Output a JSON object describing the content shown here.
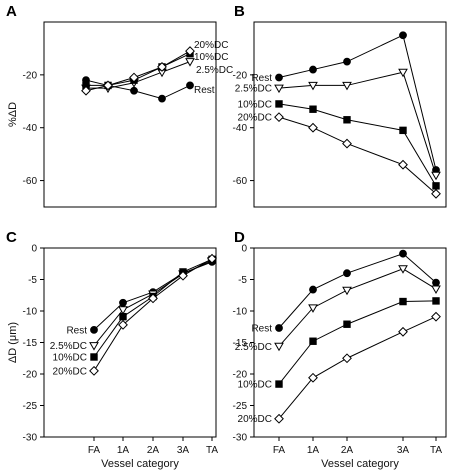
{
  "figure": {
    "x_categories": [
      "FA",
      "1A",
      "2A",
      "3A",
      "TA"
    ],
    "xlabel": "Vessel category"
  },
  "chart_data": [
    {
      "panel": "A",
      "type": "line",
      "ylabel": "%ΔD",
      "ylim": [
        -70,
        0
      ],
      "yticks": [
        -60,
        -40,
        -20
      ],
      "categories": [
        "FA",
        "1A",
        "2A",
        "3A",
        "TA"
      ],
      "show_xticks": false,
      "series": [
        {
          "name": "Rest",
          "marker": "circle-filled",
          "values": [
            -22,
            -24,
            -26,
            -29,
            -24
          ]
        },
        {
          "name": "2.5%DC",
          "marker": "triangle-open",
          "values": [
            -25,
            -25,
            -23,
            -19,
            -15
          ]
        },
        {
          "name": "10%DC",
          "marker": "square-filled",
          "values": [
            -24,
            -24,
            -22,
            -17,
            -12
          ]
        },
        {
          "name": "20%DC",
          "marker": "diamond-open",
          "values": [
            -26,
            -24,
            -21,
            -17,
            -11
          ]
        }
      ]
    },
    {
      "panel": "B",
      "type": "line",
      "ylabel": "",
      "ylim": [
        -70,
        0
      ],
      "yticks": [
        -60,
        -40,
        -20
      ],
      "categories": [
        "FA",
        "1A",
        "2A",
        "3A",
        "TA"
      ],
      "show_xticks": false,
      "series": [
        {
          "name": "Rest",
          "marker": "circle-filled",
          "values": [
            -21,
            -18,
            -15,
            -5,
            -56
          ]
        },
        {
          "name": "2.5%DC",
          "marker": "triangle-open",
          "values": [
            -25,
            -24,
            -24,
            -19,
            -58
          ]
        },
        {
          "name": "10%DC",
          "marker": "square-filled",
          "values": [
            -31,
            -33,
            -37,
            -41,
            -62
          ]
        },
        {
          "name": "20%DC",
          "marker": "diamond-open",
          "values": [
            -36,
            -40,
            -46,
            -54,
            -65
          ]
        }
      ]
    },
    {
      "panel": "C",
      "type": "line",
      "ylabel": "ΔD (μm)",
      "ylim": [
        -30,
        0
      ],
      "yticks": [
        -30,
        -25,
        -20,
        -15,
        -10,
        -5,
        0
      ],
      "categories": [
        "FA",
        "1A",
        "2A",
        "3A",
        "TA"
      ],
      "show_xticks": true,
      "xlabel": "Vessel category",
      "series": [
        {
          "name": "Rest",
          "marker": "circle-filled",
          "values": [
            -13,
            -8.7,
            -7.0,
            -4.0,
            -2.2
          ]
        },
        {
          "name": "2.5%DC",
          "marker": "triangle-open",
          "values": [
            -15.5,
            -9.8,
            -7.3,
            -4.1,
            -2.0
          ]
        },
        {
          "name": "10%DC",
          "marker": "square-filled",
          "values": [
            -17.3,
            -10.9,
            -7.7,
            -3.8,
            -1.8
          ]
        },
        {
          "name": "20%DC",
          "marker": "diamond-open",
          "values": [
            -19.5,
            -12.2,
            -8.0,
            -4.4,
            -1.7
          ]
        }
      ]
    },
    {
      "panel": "D",
      "type": "line",
      "ylabel": "",
      "ylim": [
        -30,
        0
      ],
      "yticks": [
        -30,
        -25,
        -20,
        -15,
        -10,
        -5,
        0
      ],
      "categories": [
        "FA",
        "1A",
        "2A",
        "3A",
        "TA"
      ],
      "show_xticks": true,
      "xlabel": "Vessel category",
      "series": [
        {
          "name": "Rest",
          "marker": "circle-filled",
          "values": [
            -12.7,
            -6.6,
            -4.0,
            -0.9,
            -5.5
          ]
        },
        {
          "name": "2.5%DC",
          "marker": "triangle-open",
          "values": [
            -15.6,
            -9.5,
            -6.7,
            -3.3,
            -6.5
          ]
        },
        {
          "name": "10%DC",
          "marker": "square-filled",
          "values": [
            -21.6,
            -14.8,
            -12.1,
            -8.5,
            -8.4
          ]
        },
        {
          "name": "20%DC",
          "marker": "diamond-open",
          "values": [
            -27.1,
            -20.6,
            -17.5,
            -13.3,
            -10.9
          ]
        }
      ]
    }
  ]
}
